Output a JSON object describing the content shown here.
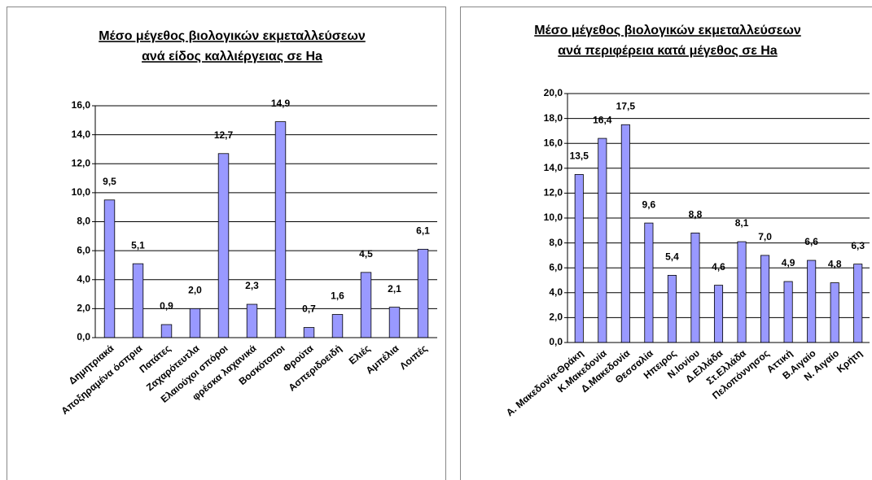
{
  "chart_data": [
    {
      "type": "bar",
      "title": [
        "Μέσο μέγεθος βιολογικών εκμεταλλεύσεων",
        "ανά είδος καλλιέργειας σε Ha"
      ],
      "categories": [
        "Δημητριακά",
        "Αποξηραμένα όσπρια",
        "Πατάτες",
        "Ζαχαρότευτλα",
        "Ελαιούχοι σπόροι",
        "φρέσκα λαχανικά",
        "Βοσκότοποι",
        "Φρούτα",
        "Ασπεριδοειδή",
        "Ελιές",
        "Αμπέλια",
        "Λοιπές"
      ],
      "values": [
        9.5,
        5.1,
        0.9,
        2.0,
        12.7,
        2.3,
        14.9,
        0.7,
        1.6,
        4.5,
        2.1,
        6.1
      ],
      "value_labels": [
        "9,5",
        "5,1",
        "0,9",
        "2,0",
        "12,7",
        "2,3",
        "14,9",
        "0,7",
        "1,6",
        "4,5",
        "2,1",
        "6,1"
      ],
      "color": "#9999ff",
      "ylim": [
        0,
        16
      ],
      "yticks": [
        {
          "value": 0,
          "label": "0,0"
        },
        {
          "value": 2,
          "label": "2,0"
        },
        {
          "value": 4,
          "label": "4,0"
        },
        {
          "value": 6,
          "label": "6,0"
        },
        {
          "value": 8,
          "label": "8,0"
        },
        {
          "value": 10,
          "label": "10,0"
        },
        {
          "value": 12,
          "label": "12,0"
        },
        {
          "value": 14,
          "label": "14,0"
        },
        {
          "value": 16,
          "label": "16,0"
        }
      ],
      "grid": true
    },
    {
      "type": "bar",
      "title": [
        "Μέσο μέγεθος βιολογικών εκμεταλλεύσεων",
        "ανά περιφέρεια κατά μέγεθος σε Ha"
      ],
      "categories": [
        "Α. Μακεδονία-Θράκη",
        "Κ.Μακεδονία",
        "Δ.Μακεδονία",
        "Θεσσαλία",
        "Ηπειρος",
        "Ν.Ιονίου",
        "Δ.Ελλάδα",
        "Στ.Ελλάδα",
        "Πελοπόννησος",
        "Αττική",
        "Β.Αιγαίο",
        "Ν. Αιγαίο",
        "Κρήτη"
      ],
      "values": [
        13.5,
        16.4,
        17.5,
        9.6,
        5.4,
        8.8,
        4.6,
        8.1,
        7.0,
        4.9,
        6.6,
        4.8,
        6.3
      ],
      "value_labels": [
        "13,5",
        "16,4",
        "17,5",
        "9,6",
        "5,4",
        "8,8",
        "4,6",
        "8,1",
        "7,0",
        "4,9",
        "6,6",
        "4,8",
        "6,3"
      ],
      "color": "#9999ff",
      "ylim": [
        0,
        20
      ],
      "yticks": [
        {
          "value": 0,
          "label": "0,0"
        },
        {
          "value": 2,
          "label": "2,0"
        },
        {
          "value": 4,
          "label": "4,0"
        },
        {
          "value": 6,
          "label": "6,0"
        },
        {
          "value": 8,
          "label": "8,0"
        },
        {
          "value": 10,
          "label": "10,0"
        },
        {
          "value": 12,
          "label": "12,0"
        },
        {
          "value": 14,
          "label": "14,0"
        },
        {
          "value": 16,
          "label": "16,0"
        },
        {
          "value": 18,
          "label": "18,0"
        },
        {
          "value": 20,
          "label": "20,0"
        }
      ],
      "grid": true
    }
  ]
}
